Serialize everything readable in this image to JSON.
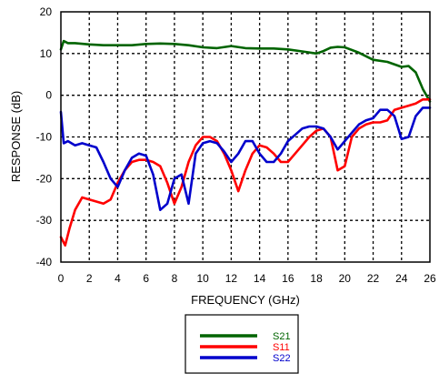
{
  "chart_data": {
    "type": "line",
    "title": "",
    "xlabel": "FREQUENCY (GHz)",
    "ylabel": "RESPONSE (dB)",
    "xlim": [
      0,
      26
    ],
    "ylim": [
      -40,
      20
    ],
    "xticks": [
      0,
      2,
      4,
      6,
      8,
      10,
      12,
      14,
      16,
      18,
      20,
      22,
      24,
      26
    ],
    "yticks": [
      -40,
      -30,
      -20,
      -10,
      0,
      10,
      20
    ],
    "grid": true,
    "legend_position": "bottom-center",
    "series": [
      {
        "name": "S21",
        "color": "#006400",
        "x": [
          0,
          0.2,
          0.5,
          1,
          2,
          3,
          4,
          5,
          6,
          7,
          8,
          9,
          10,
          11,
          12,
          13,
          14,
          15,
          16,
          17,
          18,
          18.5,
          19,
          19.5,
          20,
          21,
          22,
          23,
          24,
          24.5,
          25,
          25.5,
          26
        ],
        "y": [
          11,
          13,
          12.5,
          12.5,
          12.2,
          12,
          12,
          12,
          12.3,
          12.4,
          12.3,
          12,
          11.5,
          11.3,
          11.8,
          11.3,
          11.2,
          11.2,
          11,
          10.5,
          10,
          10.6,
          11.4,
          11.6,
          11.5,
          10.2,
          8.5,
          8,
          6.8,
          7,
          5.5,
          1.5,
          -1.5
        ]
      },
      {
        "name": "S11",
        "color": "#ff0000",
        "x": [
          0,
          0.3,
          0.6,
          1,
          1.5,
          2,
          2.5,
          3,
          3.5,
          4,
          4.5,
          5,
          5.5,
          6,
          6.5,
          7,
          7.5,
          8,
          8.5,
          9,
          9.5,
          10,
          10.5,
          11,
          11.5,
          12,
          12.5,
          13,
          13.5,
          14,
          14.5,
          15,
          15.5,
          16,
          16.5,
          17,
          17.5,
          18,
          18.5,
          19,
          19.5,
          20,
          20.5,
          21,
          21.5,
          22,
          22.5,
          23,
          23.5,
          24,
          24.5,
          25,
          25.5,
          26
        ],
        "y": [
          -34,
          -36,
          -32,
          -27.5,
          -24.5,
          -25,
          -25.5,
          -26,
          -25,
          -21,
          -18,
          -16,
          -15.5,
          -15.5,
          -16,
          -17,
          -21,
          -26,
          -22,
          -16,
          -12,
          -10,
          -10,
          -11,
          -14,
          -18,
          -23,
          -18,
          -14,
          -12,
          -12.5,
          -14,
          -16,
          -16,
          -14,
          -12,
          -10,
          -8.5,
          -8,
          -10,
          -18,
          -17,
          -10,
          -8,
          -7,
          -6.5,
          -6.5,
          -6,
          -3.5,
          -3,
          -2.5,
          -2,
          -1,
          -1
        ]
      },
      {
        "name": "S22",
        "color": "#0000cc",
        "x": [
          0,
          0.2,
          0.5,
          1,
          1.5,
          2,
          2.5,
          3,
          3.5,
          4,
          4.5,
          5,
          5.5,
          6,
          6.5,
          7,
          7.5,
          8,
          8.5,
          9,
          9.5,
          10,
          10.5,
          11,
          11.5,
          12,
          12.5,
          13,
          13.5,
          14,
          14.5,
          15,
          15.5,
          16,
          16.5,
          17,
          17.5,
          18,
          18.5,
          19,
          19.5,
          20,
          20.5,
          21,
          21.5,
          22,
          22.5,
          23,
          23.5,
          24,
          24.5,
          25,
          25.5,
          26
        ],
        "y": [
          -4,
          -11.5,
          -11,
          -12,
          -11.5,
          -12,
          -12.5,
          -16,
          -20,
          -22,
          -18,
          -15,
          -14,
          -14.5,
          -19,
          -27.5,
          -26,
          -20,
          -19,
          -26,
          -14,
          -11.5,
          -11,
          -11.5,
          -13.5,
          -16,
          -14,
          -11,
          -11,
          -14,
          -16,
          -16,
          -14,
          -11,
          -9.5,
          -8,
          -7.5,
          -7.5,
          -8,
          -10,
          -13,
          -11,
          -9,
          -7,
          -6,
          -5.5,
          -3.5,
          -3.5,
          -5,
          -10.5,
          -10,
          -5,
          -3,
          -3
        ]
      }
    ]
  }
}
